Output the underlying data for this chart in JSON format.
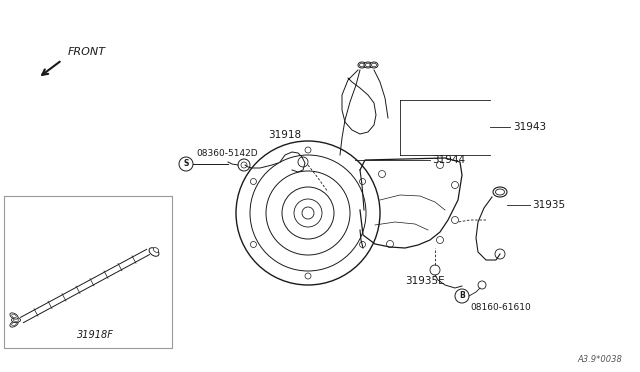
{
  "bg_color": "#ffffff",
  "lc": "#1a1a1a",
  "gray": "#888888",
  "light_gray": "#aaaaaa",
  "box_edge": "#999999",
  "box_fill": "#f5f5f5",
  "figsize": [
    6.4,
    3.72
  ],
  "dpi": 100,
  "labels": {
    "front": "FRONT",
    "p31918": "31918",
    "p31943": "31943",
    "p31944": "31944",
    "p31935": "31935",
    "p31935E": "31935E",
    "p31918F": "31918F",
    "bolt_S": "08360-5142D",
    "bolt_B": "08160-61610",
    "code": "A3.9*0038"
  }
}
